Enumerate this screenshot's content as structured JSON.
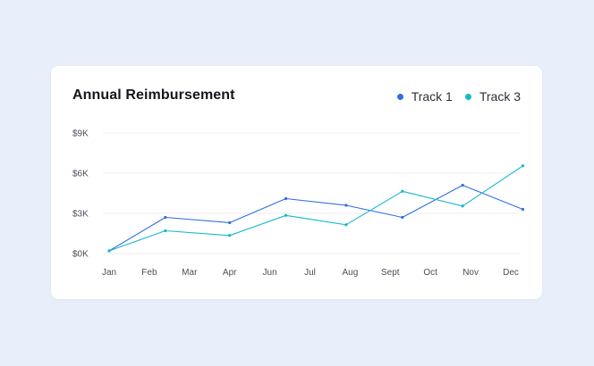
{
  "chart_data": {
    "type": "line",
    "title": "Annual Reimbursement",
    "categories": [
      "Jan",
      "Feb",
      "Mar",
      "Apr",
      "Jun",
      "Jul",
      "Aug",
      "Sept",
      "Oct",
      "Nov",
      "Dec"
    ],
    "ytick_labels": [
      "$0K",
      "$3K",
      "$6K",
      "$9K"
    ],
    "ylim": [
      0,
      9000
    ],
    "grid": true,
    "legend_position": "top-right",
    "series": [
      {
        "name": "Track 1",
        "color": "#2f6fe0",
        "points": [
          {
            "x": 0.0,
            "y": 200
          },
          {
            "x": 1.4,
            "y": 2700
          },
          {
            "x": 3.0,
            "y": 2300
          },
          {
            "x": 4.4,
            "y": 4100
          },
          {
            "x": 5.9,
            "y": 3600
          },
          {
            "x": 7.3,
            "y": 2700
          },
          {
            "x": 8.8,
            "y": 5100
          },
          {
            "x": 10.3,
            "y": 3300
          }
        ]
      },
      {
        "name": "Track 3",
        "color": "#14b8d0",
        "points": [
          {
            "x": 0.0,
            "y": 200
          },
          {
            "x": 1.4,
            "y": 1700
          },
          {
            "x": 3.0,
            "y": 1350
          },
          {
            "x": 4.4,
            "y": 2850
          },
          {
            "x": 5.9,
            "y": 2150
          },
          {
            "x": 7.3,
            "y": 4650
          },
          {
            "x": 8.8,
            "y": 3550
          },
          {
            "x": 10.3,
            "y": 6550
          }
        ]
      }
    ]
  }
}
